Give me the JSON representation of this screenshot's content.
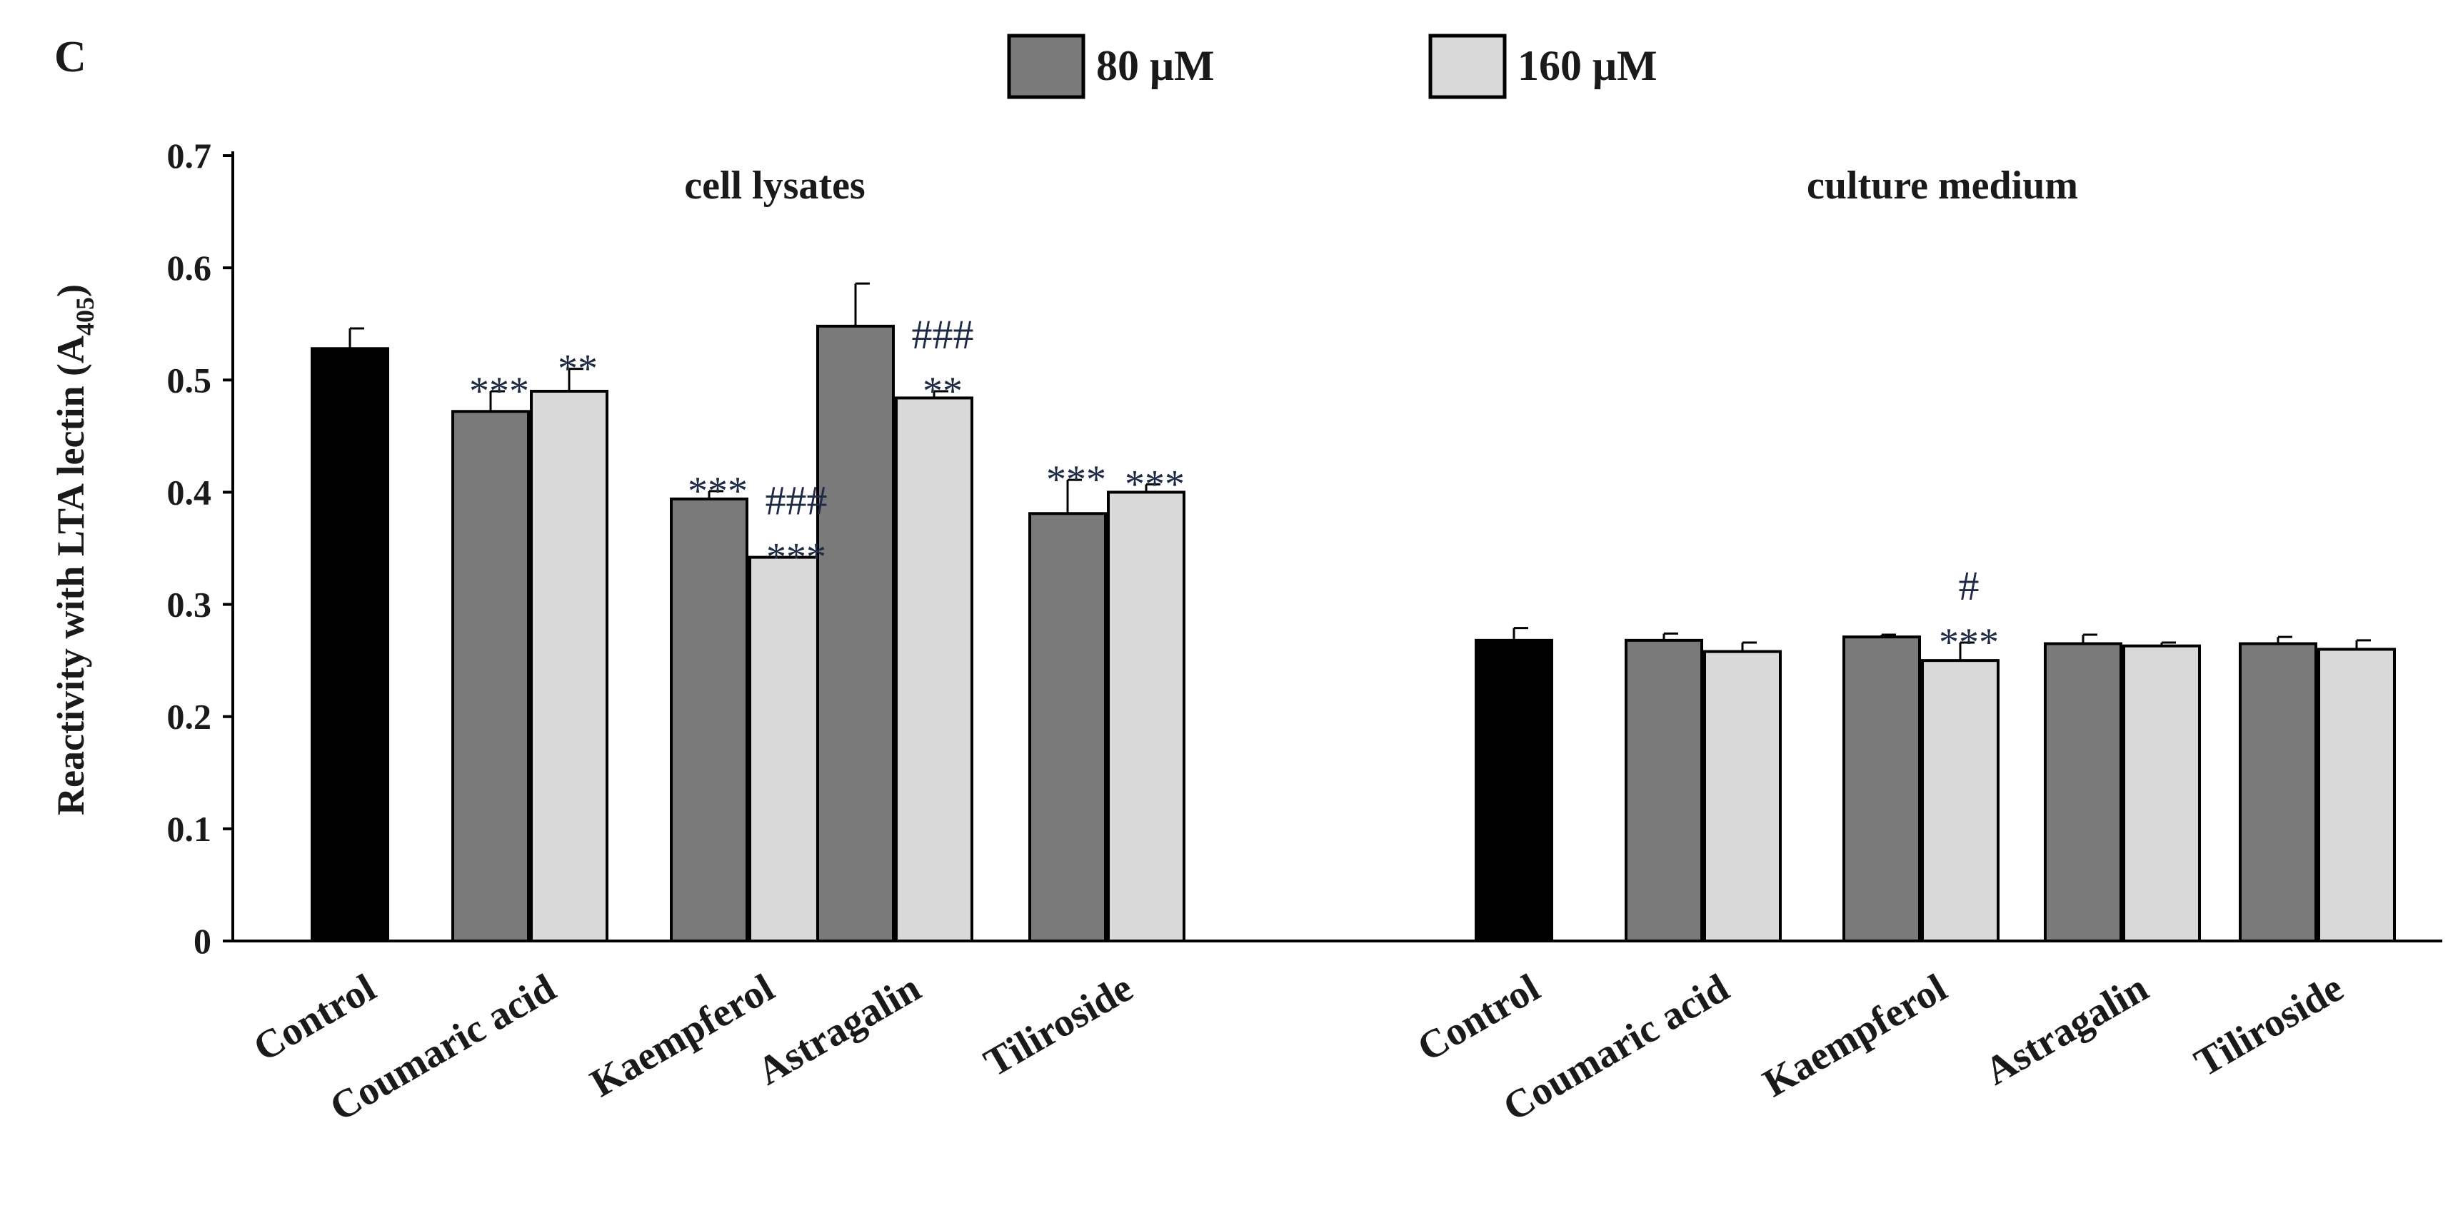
{
  "chart_data": {
    "type": "bar",
    "panel_label": "C",
    "ylabel_main": "Reactivity with  LTA lectin (A",
    "ylabel_sub": "405",
    "ylabel_close": ")",
    "ylim": [
      0,
      0.7
    ],
    "y_ticks": [
      "0",
      "0.1",
      "0.2",
      "0.3",
      "0.4",
      "0.5",
      "0.6",
      "0.7"
    ],
    "legend": [
      {
        "name": "80 μM",
        "color": "#7a7a7a"
      },
      {
        "name": "160 μM",
        "color": "#d9d9d9"
      }
    ],
    "control_color": "#000000",
    "annotation_color": "#1f2a44",
    "groups": [
      {
        "title": "cell lysates",
        "categories": [
          "Control",
          "Coumaric  acid",
          "Kaempferol",
          "Astragalin",
          "Tiliroside"
        ],
        "control": {
          "value": 0.528,
          "error": 0.018
        },
        "series": [
          {
            "name": "80 μM",
            "values": [
              0.472,
              0.394,
              0.548,
              0.381
            ],
            "errors": [
              0.018,
              0.007,
              0.038,
              0.03
            ],
            "annotations": [
              [
                "***"
              ],
              [
                "***"
              ],
              [],
              [
                "***"
              ]
            ]
          },
          {
            "name": "160 μM",
            "values": [
              0.49,
              0.342,
              0.484,
              0.4
            ],
            "errors": [
              0.02,
              0.0,
              0.006,
              0.007
            ],
            "annotations": [
              [
                "**"
              ],
              [
                "###",
                "***"
              ],
              [
                "###",
                "**"
              ],
              [
                "***"
              ]
            ]
          }
        ]
      },
      {
        "title": "culture  medium",
        "categories": [
          "Control",
          "Coumaric  acid",
          "Kaempferol",
          "Astragalin",
          "Tiliroside"
        ],
        "control": {
          "value": 0.268,
          "error": 0.011
        },
        "series": [
          {
            "name": "80 μM",
            "values": [
              0.268,
              0.271,
              0.265,
              0.265
            ],
            "errors": [
              0.006,
              0.002,
              0.008,
              0.006
            ],
            "annotations": [
              [],
              [],
              [],
              []
            ]
          },
          {
            "name": "160 μM",
            "values": [
              0.258,
              0.25,
              0.263,
              0.26
            ],
            "errors": [
              0.008,
              0.016,
              0.003,
              0.008
            ],
            "annotations": [
              [],
              [
                "#",
                "***"
              ],
              [],
              []
            ]
          }
        ]
      }
    ]
  }
}
